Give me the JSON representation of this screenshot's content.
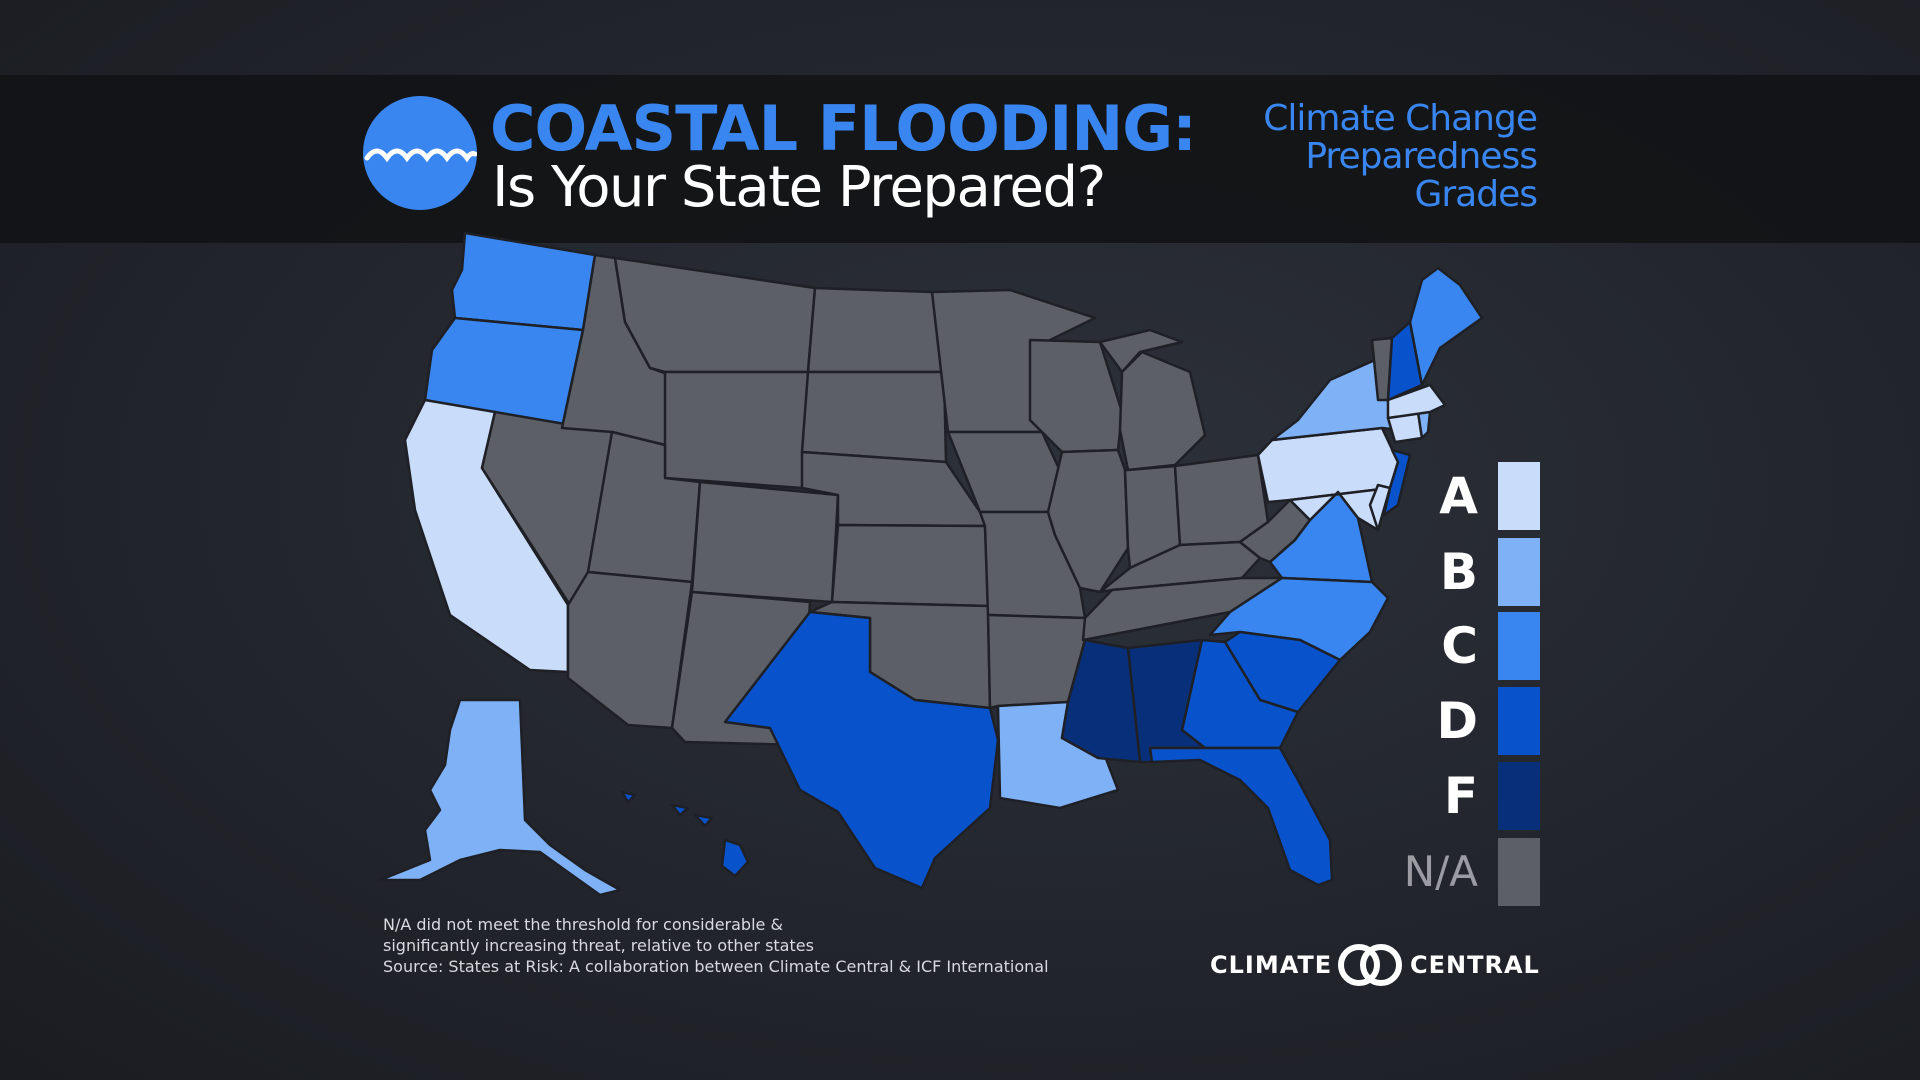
{
  "header": {
    "title_line1": "COASTAL FLOODING:",
    "title_line2": "Is Your State Prepared?",
    "subtitle_lines": [
      "Climate Change",
      "Preparedness",
      "Grades"
    ],
    "logo_icon": "wave-icon"
  },
  "legend": {
    "items": [
      {
        "grade": "A",
        "color": "#c9dcfa"
      },
      {
        "grade": "B",
        "color": "#7fb1f7"
      },
      {
        "grade": "C",
        "color": "#3a86f0"
      },
      {
        "grade": "D",
        "color": "#0853cc"
      },
      {
        "grade": "F",
        "color": "#08307a"
      },
      {
        "grade": "N/A",
        "color": "#5d5f66"
      }
    ]
  },
  "map": {
    "stroke_color": "#1e2026",
    "grades": {
      "Washington": "C",
      "Oregon": "C",
      "California": "A",
      "Alaska": "B",
      "Hawaii": "D",
      "Texas": "D",
      "Louisiana": "B",
      "Mississippi": "F",
      "Alabama": "F",
      "Florida": "D",
      "Georgia": "D",
      "South Carolina": "D",
      "North Carolina": "C",
      "Virginia": "C",
      "Maryland": "A",
      "Delaware": "A",
      "New Jersey": "D",
      "Pennsylvania": "A",
      "New York": "B",
      "Connecticut": "A",
      "Rhode Island": "B",
      "Massachusetts": "A",
      "New Hampshire": "D",
      "Maine": "C"
    }
  },
  "footnote": {
    "lines": [
      "N/A did not meet the threshold for considerable &",
      "significantly increasing threat, relative to other states",
      "Source: States at Risk: A collaboration between Climate Central & ICF International"
    ]
  },
  "brand": {
    "left": "CLIMATE",
    "right": "CENTRAL"
  }
}
